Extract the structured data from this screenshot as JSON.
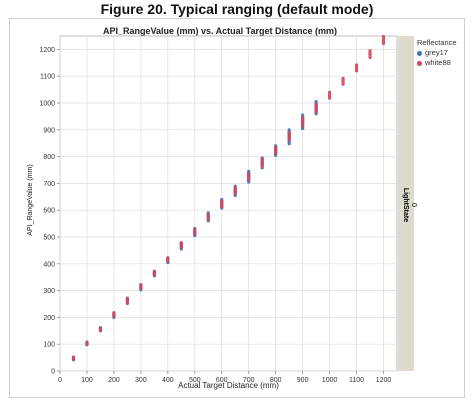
{
  "figure": {
    "title": "Figure 20. Typical ranging (default mode)"
  },
  "legend": {
    "title": "Reflectance",
    "items": [
      {
        "label": "grey17",
        "color": "#3b6fbf"
      },
      {
        "label": "white88",
        "color": "#d6455a"
      }
    ]
  },
  "strip": {
    "label": "LightState",
    "value": "0"
  },
  "colors": {
    "panel_bg": "#ffffff",
    "grid": "#dcdcdc",
    "strip_bg": "#dedbcd",
    "axis": "#888888"
  },
  "chart_data": {
    "type": "scatter",
    "title": "API_RangeValue (mm) vs. Actual Target Distance (mm)",
    "xlabel": "Actual Target Distance (mm)",
    "ylabel": "API_RangeValue (mm)",
    "xlim": [
      0,
      1250
    ],
    "ylim": [
      0,
      1250
    ],
    "xticks": [
      0,
      100,
      200,
      300,
      400,
      500,
      600,
      700,
      800,
      900,
      1000,
      1100,
      1200
    ],
    "yticks": [
      0,
      100,
      200,
      300,
      400,
      500,
      600,
      700,
      800,
      900,
      1000,
      1100,
      1200
    ],
    "grid": true,
    "legend_position": "right",
    "series": [
      {
        "name": "grey17",
        "points": [
          [
            50,
            42,
            52
          ],
          [
            100,
            98,
            108
          ],
          [
            150,
            150,
            162
          ],
          [
            200,
            200,
            215
          ],
          [
            250,
            252,
            272
          ],
          [
            300,
            303,
            322
          ],
          [
            350,
            355,
            372
          ],
          [
            400,
            405,
            422
          ],
          [
            450,
            455,
            478
          ],
          [
            500,
            505,
            532
          ],
          [
            550,
            560,
            590
          ],
          [
            600,
            608,
            640
          ],
          [
            650,
            655,
            690
          ],
          [
            700,
            705,
            745
          ],
          [
            750,
            758,
            795
          ],
          [
            800,
            805,
            840
          ],
          [
            850,
            848,
            900
          ],
          [
            900,
            905,
            955
          ],
          [
            950,
            960,
            1005
          ]
        ]
      },
      {
        "name": "white88",
        "points": [
          [
            50,
            45,
            52
          ],
          [
            100,
            100,
            106
          ],
          [
            150,
            152,
            160
          ],
          [
            200,
            205,
            218
          ],
          [
            250,
            255,
            270
          ],
          [
            300,
            308,
            322
          ],
          [
            350,
            358,
            372
          ],
          [
            400,
            410,
            422
          ],
          [
            450,
            460,
            478
          ],
          [
            500,
            510,
            530
          ],
          [
            550,
            565,
            585
          ],
          [
            600,
            612,
            635
          ],
          [
            650,
            662,
            685
          ],
          [
            700,
            712,
            735
          ],
          [
            750,
            765,
            790
          ],
          [
            800,
            812,
            835
          ],
          [
            850,
            862,
            890
          ],
          [
            900,
            915,
            945
          ],
          [
            950,
            965,
            995
          ],
          [
            1000,
            1018,
            1040
          ],
          [
            1050,
            1070,
            1092
          ],
          [
            1100,
            1120,
            1142
          ],
          [
            1150,
            1170,
            1195
          ],
          [
            1200,
            1222,
            1248
          ]
        ]
      }
    ]
  }
}
